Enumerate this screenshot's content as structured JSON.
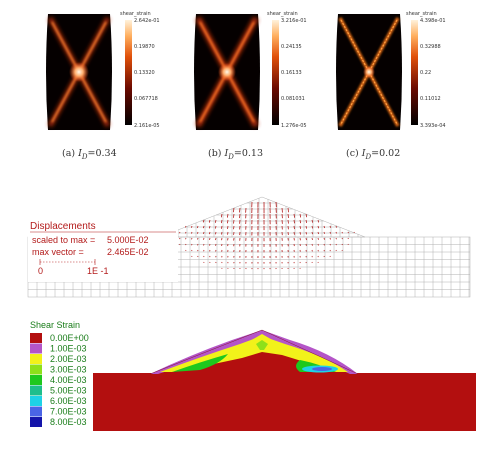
{
  "panels": [
    {
      "id": "a",
      "caption": "(a) I_D=0.34",
      "caption_prefix": "(a) ",
      "caption_var": "I",
      "caption_sub": "D",
      "caption_value": "=0.34",
      "colorbar_title": "shear_strain",
      "colorbar_ticks": [
        "2.642e-01",
        "0.19870",
        "0.13320",
        "0.067718",
        "2.161e-05"
      ]
    },
    {
      "id": "b",
      "caption": "(b) I_D=0.13",
      "caption_prefix": "(b) ",
      "caption_var": "I",
      "caption_sub": "D",
      "caption_value": "=0.13",
      "colorbar_title": "shear_strain",
      "colorbar_ticks": [
        "3.216e-01",
        "0.24135",
        "0.16133",
        "0.081031",
        "1.276e-05"
      ]
    },
    {
      "id": "c",
      "caption": "(c) I_D=0.02",
      "caption_prefix": "(c) ",
      "caption_var": "I",
      "caption_sub": "D",
      "caption_value": "=0.02",
      "colorbar_title": "shear_strain",
      "colorbar_ticks": [
        "4.398e-01",
        "0.32988",
        "0.22",
        "0.11012",
        "3.393e-04"
      ]
    }
  ],
  "displacements": {
    "title": "Displacements",
    "scaled_label": "scaled to max =",
    "scaled_value": "5.000E-02",
    "max_label": "max vector =",
    "max_value": "2.465E-02",
    "scale_start": "0",
    "scale_end": "1E -1"
  },
  "shear_strain": {
    "title": "Shear Strain",
    "legend": [
      {
        "label": "0.00E+00",
        "color": "#b30f0f"
      },
      {
        "label": "1.00E-03",
        "color": "#b455c8"
      },
      {
        "label": "2.00E-03",
        "color": "#f2f21a"
      },
      {
        "label": "3.00E-03",
        "color": "#8ee01a"
      },
      {
        "label": "4.00E-03",
        "color": "#1ec81e"
      },
      {
        "label": "5.00E-03",
        "color": "#1ebe8c"
      },
      {
        "label": "6.00E-03",
        "color": "#1ed2e6"
      },
      {
        "label": "7.00E-03",
        "color": "#4a64e6"
      },
      {
        "label": "8.00E-03",
        "color": "#1414aa"
      }
    ]
  }
}
